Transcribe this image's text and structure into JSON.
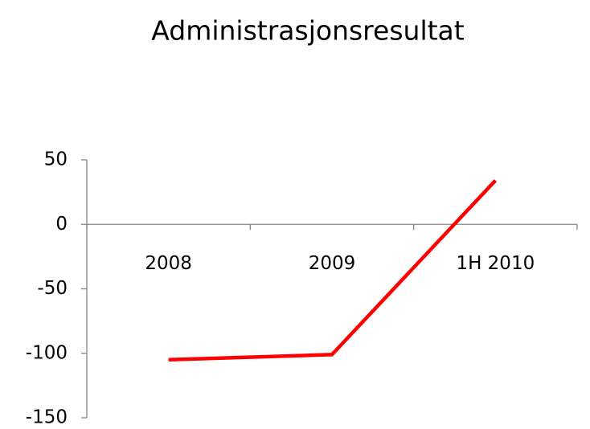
{
  "chart_data": {
    "type": "line",
    "title": "Administrasjonsresultat",
    "categories": [
      "2008",
      "2009",
      "1H 2010"
    ],
    "series": [
      {
        "name": "Administrasjonsresultat",
        "color": "#ff0000",
        "values": [
          -105,
          -101,
          34
        ]
      }
    ],
    "ylim": [
      -150,
      50
    ],
    "yticks": [
      -150,
      -100,
      -50,
      0,
      50
    ],
    "grid": false
  }
}
